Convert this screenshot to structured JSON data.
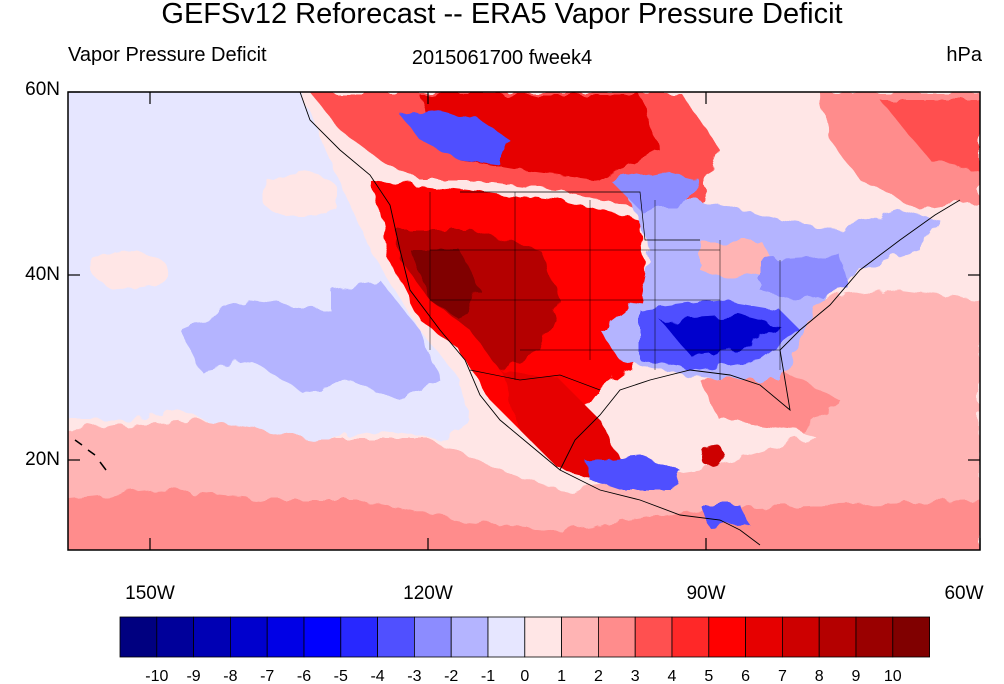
{
  "title": "GEFSv12 Reforecast -- ERA5 Vapor Pressure Deficit",
  "left_string": "Vapor Pressure Deficit",
  "center_string": "2015061700 fweek4",
  "right_string": "hPa",
  "lat_labels": [
    "60N",
    "40N",
    "20N"
  ],
  "lon_labels": [
    "150W",
    "120W",
    "90W",
    "60W"
  ],
  "colorbar": {
    "labels": [
      "-10",
      "-9",
      "-8",
      "-7",
      "-6",
      "-5",
      "-4",
      "-3",
      "-2",
      "-1",
      "0",
      "1",
      "2",
      "3",
      "4",
      "5",
      "6",
      "7",
      "8",
      "9",
      "10"
    ],
    "colors": [
      "#000080",
      "#00009a",
      "#0000b4",
      "#0000cd",
      "#0000e6",
      "#0000ff",
      "#2828ff",
      "#5050ff",
      "#8c8cff",
      "#b4b4ff",
      "#e6e6ff",
      "#ffe6e6",
      "#ffb4b4",
      "#ff8c8c",
      "#ff5050",
      "#ff2828",
      "#ff0000",
      "#e60000",
      "#cd0000",
      "#b40000",
      "#9a0000",
      "#800000"
    ]
  },
  "map_colors": {
    "ocean_base": "#e6e6ff",
    "land": "#ffe6e6"
  }
}
